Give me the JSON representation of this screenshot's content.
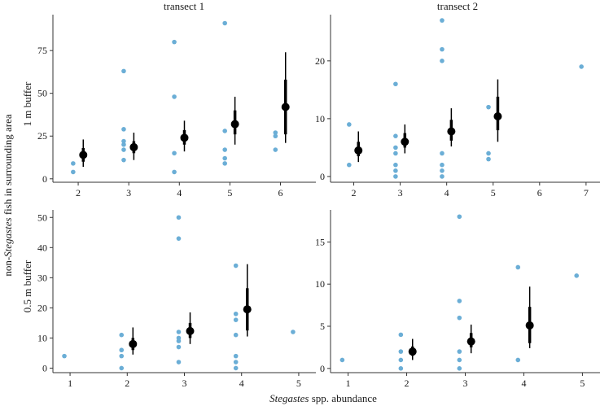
{
  "chart_data": {
    "type": "scatter",
    "ylabel": {
      "prefix": "non-",
      "italic": "Stegastes",
      "suffix": " fish in surrounding area"
    },
    "xlabel": {
      "italic": "Stegastes",
      "suffix": " spp. abundance"
    },
    "colors": {
      "raw_points": "#6baed6",
      "summary": "#000000"
    },
    "columns": [
      "transect 1",
      "transect 2"
    ],
    "rows": [
      "1 m buffer",
      "0.5 m buffer"
    ],
    "panels": [
      {
        "row": "1 m buffer",
        "column": "transect 1",
        "xlim": [
          1.5,
          6.7
        ],
        "ylim": [
          -2,
          96
        ],
        "xticks": [
          2,
          3,
          4,
          5,
          6
        ],
        "yticks": [
          0,
          25,
          50,
          75
        ],
        "points": [
          {
            "x": 1.9,
            "y": 9
          },
          {
            "x": 1.9,
            "y": 4
          },
          {
            "x": 2.9,
            "y": 63
          },
          {
            "x": 2.9,
            "y": 29
          },
          {
            "x": 2.9,
            "y": 22
          },
          {
            "x": 2.9,
            "y": 20
          },
          {
            "x": 2.9,
            "y": 17
          },
          {
            "x": 2.9,
            "y": 11
          },
          {
            "x": 3.9,
            "y": 80
          },
          {
            "x": 3.9,
            "y": 48
          },
          {
            "x": 3.9,
            "y": 15
          },
          {
            "x": 3.9,
            "y": 4
          },
          {
            "x": 4.9,
            "y": 91
          },
          {
            "x": 4.9,
            "y": 28
          },
          {
            "x": 4.9,
            "y": 17
          },
          {
            "x": 4.9,
            "y": 12
          },
          {
            "x": 4.9,
            "y": 9
          },
          {
            "x": 5.9,
            "y": 27
          },
          {
            "x": 5.9,
            "y": 25
          },
          {
            "x": 5.9,
            "y": 17
          }
        ],
        "summary": [
          {
            "x": 2.1,
            "mean": 14,
            "inner": [
              10,
              18
            ],
            "outer": [
              7,
              23
            ]
          },
          {
            "x": 3.1,
            "mean": 18.5,
            "inner": [
              15,
              22
            ],
            "outer": [
              11,
              27
            ]
          },
          {
            "x": 4.1,
            "mean": 24,
            "inner": [
              20,
              28.5
            ],
            "outer": [
              16,
              34
            ]
          },
          {
            "x": 5.1,
            "mean": 32,
            "inner": [
              26,
              40
            ],
            "outer": [
              20,
              48
            ]
          },
          {
            "x": 6.1,
            "mean": 42,
            "inner": [
              26,
              58
            ],
            "outer": [
              21,
              74
            ]
          }
        ]
      },
      {
        "row": "1 m buffer",
        "column": "transect 2",
        "xlim": [
          1.5,
          7.3
        ],
        "ylim": [
          -1,
          28
        ],
        "xticks": [
          2,
          3,
          4,
          5,
          6,
          7
        ],
        "yticks": [
          0,
          10,
          20
        ],
        "points": [
          {
            "x": 1.9,
            "y": 9
          },
          {
            "x": 1.9,
            "y": 2
          },
          {
            "x": 2.9,
            "y": 16
          },
          {
            "x": 2.9,
            "y": 7
          },
          {
            "x": 2.9,
            "y": 5
          },
          {
            "x": 2.9,
            "y": 4
          },
          {
            "x": 2.9,
            "y": 2
          },
          {
            "x": 2.9,
            "y": 1
          },
          {
            "x": 2.9,
            "y": 0
          },
          {
            "x": 3.9,
            "y": 27
          },
          {
            "x": 3.9,
            "y": 22
          },
          {
            "x": 3.9,
            "y": 20
          },
          {
            "x": 3.9,
            "y": 4
          },
          {
            "x": 3.9,
            "y": 2
          },
          {
            "x": 3.9,
            "y": 1
          },
          {
            "x": 3.9,
            "y": 0
          },
          {
            "x": 4.9,
            "y": 12
          },
          {
            "x": 4.9,
            "y": 4
          },
          {
            "x": 4.9,
            "y": 3
          },
          {
            "x": 6.9,
            "y": 19
          }
        ],
        "summary": [
          {
            "x": 2.1,
            "mean": 4.5,
            "inner": [
              3.5,
              6
            ],
            "outer": [
              2.5,
              7.8
            ]
          },
          {
            "x": 3.1,
            "mean": 6,
            "inner": [
              5,
              7.5
            ],
            "outer": [
              4,
              9
            ]
          },
          {
            "x": 4.1,
            "mean": 7.8,
            "inner": [
              6.2,
              9.8
            ],
            "outer": [
              5.2,
              11.8
            ]
          },
          {
            "x": 5.1,
            "mean": 10.4,
            "inner": [
              8,
              13.8
            ],
            "outer": [
              6,
              16.8
            ]
          }
        ]
      },
      {
        "row": "0.5 m buffer",
        "column": "transect 1",
        "xlim": [
          0.7,
          5.3
        ],
        "ylim": [
          -1.5,
          52.5
        ],
        "xticks": [
          1,
          2,
          3,
          4,
          5
        ],
        "yticks": [
          0,
          10,
          20,
          30,
          40,
          50
        ],
        "points": [
          {
            "x": 0.9,
            "y": 4
          },
          {
            "x": 1.9,
            "y": 11
          },
          {
            "x": 1.9,
            "y": 6
          },
          {
            "x": 1.9,
            "y": 4
          },
          {
            "x": 1.9,
            "y": 0
          },
          {
            "x": 2.9,
            "y": 50
          },
          {
            "x": 2.9,
            "y": 43
          },
          {
            "x": 2.9,
            "y": 12
          },
          {
            "x": 2.9,
            "y": 10
          },
          {
            "x": 2.9,
            "y": 9
          },
          {
            "x": 2.9,
            "y": 7
          },
          {
            "x": 2.9,
            "y": 2
          },
          {
            "x": 3.9,
            "y": 34
          },
          {
            "x": 3.9,
            "y": 18
          },
          {
            "x": 3.9,
            "y": 16
          },
          {
            "x": 3.9,
            "y": 11
          },
          {
            "x": 3.9,
            "y": 4
          },
          {
            "x": 3.9,
            "y": 2
          },
          {
            "x": 3.9,
            "y": 0
          },
          {
            "x": 4.9,
            "y": 12
          }
        ],
        "summary": [
          {
            "x": 2.1,
            "mean": 8,
            "inner": [
              6,
              10
            ],
            "outer": [
              4.5,
              13.5
            ]
          },
          {
            "x": 3.1,
            "mean": 12.3,
            "inner": [
              10,
              15
            ],
            "outer": [
              8,
              18.5
            ]
          },
          {
            "x": 4.1,
            "mean": 19.5,
            "inner": [
              12.5,
              26.5
            ],
            "outer": [
              10.5,
              34.5
            ]
          }
        ]
      },
      {
        "row": "0.5 m buffer",
        "column": "transect 2",
        "xlim": [
          0.7,
          5.3
        ],
        "ylim": [
          -0.5,
          18.8
        ],
        "xticks": [
          1,
          2,
          3,
          4,
          5
        ],
        "yticks": [
          0,
          5,
          10,
          15
        ],
        "points": [
          {
            "x": 0.9,
            "y": 1
          },
          {
            "x": 1.9,
            "y": 4
          },
          {
            "x": 1.9,
            "y": 2
          },
          {
            "x": 1.9,
            "y": 1
          },
          {
            "x": 1.9,
            "y": 0
          },
          {
            "x": 2.9,
            "y": 18
          },
          {
            "x": 2.9,
            "y": 8
          },
          {
            "x": 2.9,
            "y": 6
          },
          {
            "x": 2.9,
            "y": 2
          },
          {
            "x": 2.9,
            "y": 1
          },
          {
            "x": 2.9,
            "y": 0
          },
          {
            "x": 3.9,
            "y": 12
          },
          {
            "x": 3.9,
            "y": 1
          },
          {
            "x": 4.9,
            "y": 11
          }
        ],
        "summary": [
          {
            "x": 2.1,
            "mean": 2,
            "inner": [
              1.5,
              2.6
            ],
            "outer": [
              1,
              3.5
            ]
          },
          {
            "x": 3.1,
            "mean": 3.2,
            "inner": [
              2.5,
              4.2
            ],
            "outer": [
              1.8,
              5.2
            ]
          },
          {
            "x": 4.1,
            "mean": 5.1,
            "inner": [
              3,
              7.3
            ],
            "outer": [
              2.4,
              9.7
            ]
          }
        ]
      }
    ]
  }
}
